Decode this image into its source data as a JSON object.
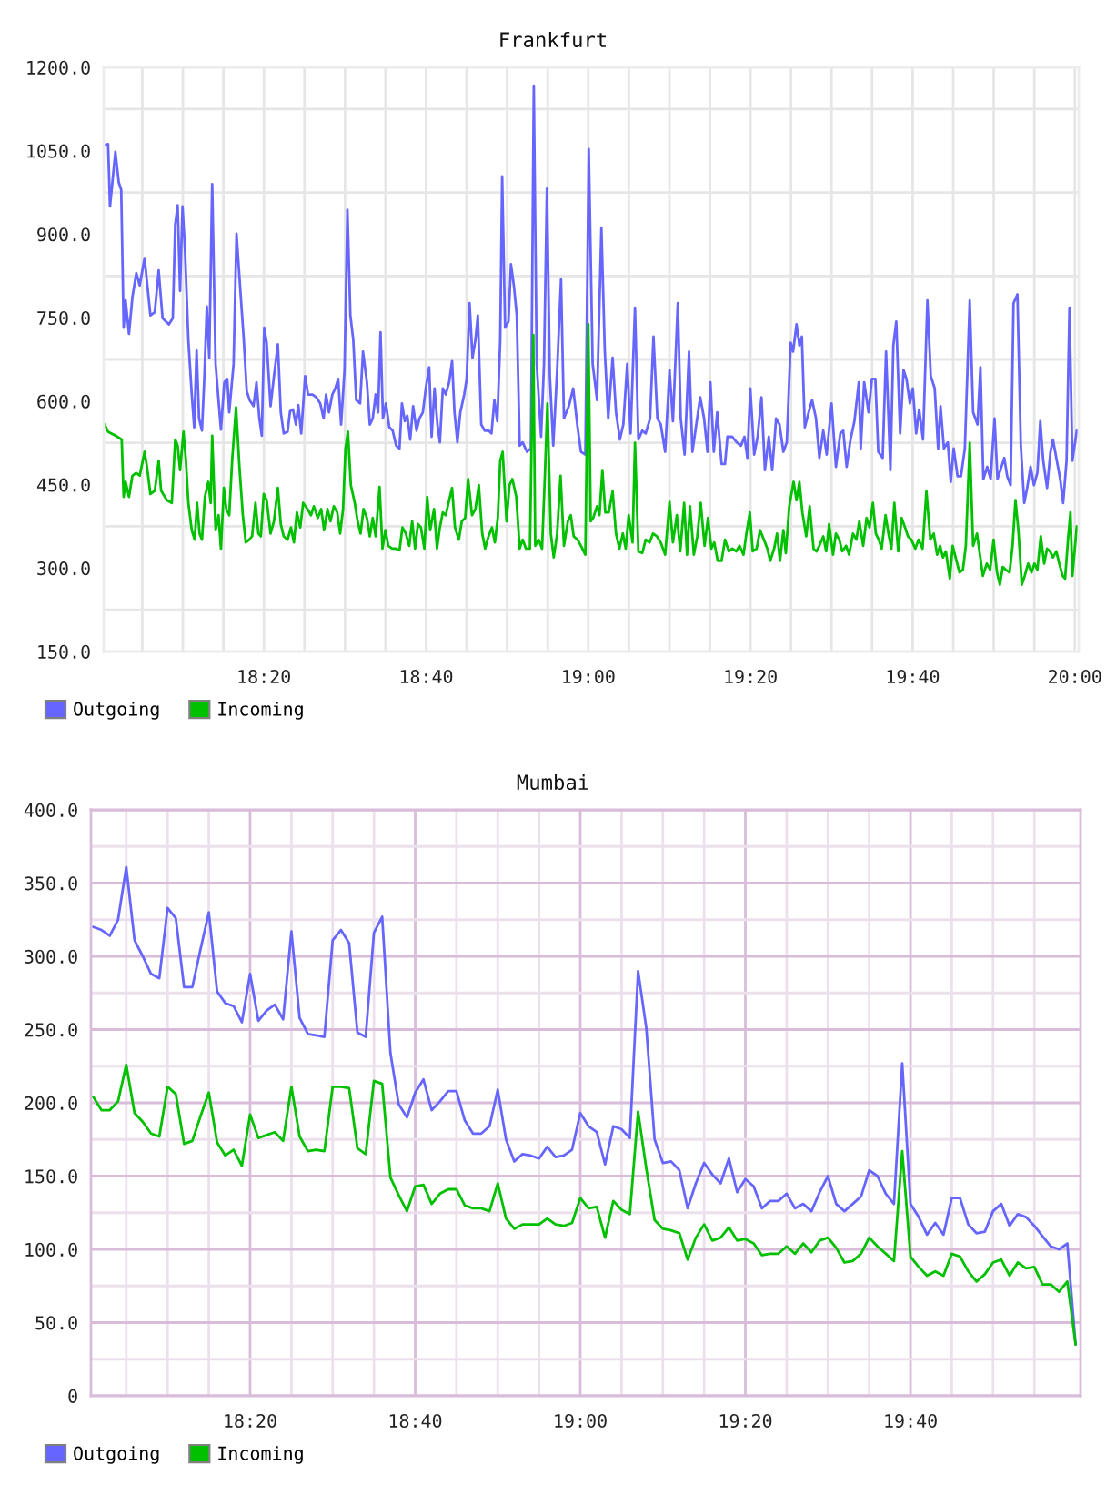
{
  "chart_data": [
    {
      "type": "line",
      "title": "Frankfurt",
      "xlim": [
        18.004,
        20.008
      ],
      "ylim": [
        150,
        1200
      ],
      "xticks": [
        {
          "value": 18.0833,
          "label": null
        },
        {
          "value": 18.1667,
          "label": null
        },
        {
          "value": 18.25,
          "label": null
        },
        {
          "value": 18.3333,
          "label": "18:20"
        },
        {
          "value": 18.4167,
          "label": null
        },
        {
          "value": 18.5,
          "label": null
        },
        {
          "value": 18.5833,
          "label": null
        },
        {
          "value": 18.6667,
          "label": "18:40"
        },
        {
          "value": 18.75,
          "label": null
        },
        {
          "value": 18.8333,
          "label": null
        },
        {
          "value": 18.9167,
          "label": null
        },
        {
          "value": 19,
          "label": "19:00"
        },
        {
          "value": 19.0833,
          "label": null
        },
        {
          "value": 19.1667,
          "label": null
        },
        {
          "value": 19.25,
          "label": null
        },
        {
          "value": 19.3333,
          "label": "19:20"
        },
        {
          "value": 19.4167,
          "label": null
        },
        {
          "value": 19.5,
          "label": null
        },
        {
          "value": 19.5833,
          "label": null
        },
        {
          "value": 19.6667,
          "label": "19:40"
        },
        {
          "value": 19.75,
          "label": null
        },
        {
          "value": 19.8333,
          "label": null
        },
        {
          "value": 19.9167,
          "label": null
        },
        {
          "value": 20,
          "label": "20:00"
        }
      ],
      "yticks": [
        {
          "value": 150,
          "label": "150.0"
        },
        {
          "value": 225,
          "label": null
        },
        {
          "value": 300,
          "label": "300.0"
        },
        {
          "value": 375,
          "label": null
        },
        {
          "value": 450,
          "label": "450.0"
        },
        {
          "value": 525,
          "label": null
        },
        {
          "value": 600,
          "label": "600.0"
        },
        {
          "value": 675,
          "label": null
        },
        {
          "value": 750,
          "label": "750.0"
        },
        {
          "value": 825,
          "label": null
        },
        {
          "value": 900,
          "label": "900.0"
        },
        {
          "value": 975,
          "label": null
        },
        {
          "value": 1050,
          "label": "1050.0"
        },
        {
          "value": 1125,
          "label": null
        },
        {
          "value": 1200,
          "label": "1200.0"
        }
      ],
      "grid": true,
      "legend": "bottom left",
      "series": [
        {
          "name": "Outgoing",
          "color": "#6666ff",
          "x": [
            18.006,
            18.013,
            18.017,
            18.028,
            18.035,
            18.04,
            18.045,
            18.049,
            18.056,
            18.063,
            18.071,
            18.078,
            18.088,
            18.1,
            18.109,
            18.117,
            18.125,
            18.138,
            18.146,
            18.151,
            18.156,
            18.161,
            18.166,
            18.171,
            18.178,
            18.185,
            18.19,
            18.195,
            18.2,
            18.206,
            18.211,
            18.216,
            18.221,
            18.227,
            18.234,
            18.24,
            18.245,
            18.252,
            18.258,
            18.262,
            18.271,
            18.277,
            18.285,
            18.292,
            18.298,
            18.304,
            18.312,
            18.318,
            18.324,
            18.329,
            18.334,
            18.339,
            18.347,
            18.354,
            18.362,
            18.368,
            18.374,
            18.382,
            18.387,
            18.393,
            18.399,
            18.404,
            18.41,
            18.418,
            18.424,
            18.433,
            18.441,
            18.449,
            18.456,
            18.461,
            18.467,
            18.474,
            18.48,
            18.486,
            18.492,
            18.499,
            18.505,
            18.511,
            18.517,
            18.523,
            18.531,
            18.537,
            18.545,
            18.551,
            18.557,
            18.563,
            18.568,
            18.573,
            18.578,
            18.584,
            18.591,
            18.598,
            18.605,
            18.612,
            18.617,
            18.623,
            18.628,
            18.634,
            18.64,
            18.647,
            18.653,
            18.66,
            18.666,
            18.673,
            18.678,
            18.684,
            18.69,
            18.695,
            18.701,
            18.707,
            18.714,
            18.72,
            18.725,
            18.731,
            18.737,
            18.745,
            18.75,
            18.756,
            18.762,
            18.768,
            18.773,
            18.78,
            18.787,
            18.795,
            18.801,
            18.807,
            18.813,
            18.819,
            18.823,
            18.829,
            18.836,
            18.841,
            18.847,
            18.853,
            18.859,
            18.865,
            18.874,
            18.882,
            18.888,
            18.894,
            18.903,
            18.909,
            18.915,
            18.921,
            18.928,
            18.936,
            18.944,
            18.95,
            18.96,
            18.969,
            18.978,
            18.985,
            18.994,
            19.001,
            19.009,
            19.018,
            19.027,
            19.034,
            19.041,
            19.05,
            19.057,
            19.065,
            19.072,
            19.08,
            19.087,
            19.096,
            19.103,
            19.111,
            19.118,
            19.127,
            19.134,
            19.142,
            19.149,
            19.158,
            19.167,
            19.174,
            19.184,
            19.19,
            19.198,
            19.207,
            19.214,
            19.222,
            19.23,
            19.238,
            19.245,
            19.251,
            19.258,
            19.265,
            19.274,
            19.281,
            19.286,
            19.296,
            19.305,
            19.314,
            19.321,
            19.327,
            19.333,
            19.341,
            19.348,
            19.356,
            19.363,
            19.371,
            19.378,
            19.386,
            19.393,
            19.401,
            19.408,
            19.416,
            19.421,
            19.428,
            19.434,
            19.439,
            19.445,
            19.453,
            19.46,
            19.468,
            19.475,
            19.483,
            19.49,
            19.5,
            19.509,
            19.518,
            19.524,
            19.531,
            19.539,
            19.547,
            19.556,
            19.56,
            19.567,
            19.576,
            19.583,
            19.59,
            19.596,
            19.605,
            19.612,
            19.621,
            19.627,
            19.633,
            19.641,
            19.648,
            19.654,
            19.661,
            19.667,
            19.674,
            19.68,
            19.688,
            19.697,
            19.704,
            19.712,
            19.719,
            19.724,
            19.731,
            19.739,
            19.745,
            19.751,
            19.759,
            19.766,
            19.774,
            19.784,
            19.791,
            19.8,
            19.806,
            19.812,
            19.82,
            19.827,
            19.835,
            19.841,
            19.847,
            19.855,
            19.861,
            19.868,
            19.874,
            19.882,
            19.889,
            19.896,
            19.902,
            19.909,
            19.916,
            19.923,
            19.929,
            19.935,
            19.943,
            19.95,
            19.955,
            19.963,
            19.97,
            19.976,
            19.983,
            19.989,
            19.995,
            20.004
          ],
          "values": [
            1060,
            1062,
            950,
            1048,
            993,
            980,
            732,
            781,
            721,
            787,
            830,
            808,
            857,
            754,
            760,
            835,
            749,
            738,
            749,
            917,
            952,
            798,
            950,
            874,
            710,
            612,
            553,
            691,
            569,
            547,
            645,
            770,
            678,
            990,
            667,
            602,
            549,
            634,
            640,
            580,
            667,
            901,
            798,
            710,
            618,
            602,
            591,
            634,
            569,
            538,
            732,
            705,
            591,
            645,
            702,
            580,
            542,
            545,
            582,
            585,
            558,
            593,
            542,
            645,
            612,
            612,
            607,
            596,
            569,
            612,
            580,
            612,
            623,
            640,
            558,
            656,
            944,
            754,
            710,
            602,
            596,
            689,
            634,
            558,
            569,
            612,
            580,
            724,
            569,
            596,
            553,
            547,
            520,
            515,
            596,
            564,
            574,
            531,
            591,
            547,
            569,
            580,
            623,
            661,
            536,
            623,
            558,
            526,
            623,
            612,
            634,
            672,
            580,
            526,
            580,
            612,
            640,
            776,
            678,
            710,
            754,
            558,
            547,
            547,
            542,
            602,
            564,
            710,
            1004,
            732,
            743,
            846,
            808,
            754,
            520,
            526,
            509,
            515,
            1167,
            667,
            536,
            667,
            982,
            645,
            520,
            656,
            819,
            569,
            591,
            623,
            553,
            509,
            504,
            1053,
            667,
            602,
            912,
            689,
            569,
            678,
            580,
            531,
            558,
            667,
            542,
            768,
            531,
            547,
            542,
            569,
            716,
            569,
            558,
            509,
            656,
            564,
            776,
            569,
            504,
            689,
            509,
            558,
            607,
            569,
            509,
            634,
            509,
            580,
            487,
            487,
            536,
            536,
            526,
            520,
            536,
            498,
            623,
            504,
            536,
            607,
            476,
            536,
            476,
            569,
            558,
            509,
            526,
            705,
            689,
            738,
            700,
            716,
            553,
            580,
            602,
            569,
            498,
            547,
            504,
            596,
            482,
            542,
            547,
            482,
            531,
            564,
            634,
            515,
            634,
            580,
            640,
            640,
            509,
            498,
            689,
            476,
            700,
            743,
            542,
            656,
            640,
            596,
            623,
            542,
            585,
            531,
            781,
            645,
            623,
            515,
            591,
            515,
            526,
            455,
            515,
            465,
            465,
            515,
            781,
            580,
            558,
            661,
            460,
            482,
            460,
            569,
            460,
            476,
            498,
            465,
            449,
            776,
            792,
            520,
            417,
            444,
            482,
            449,
            471,
            564,
            493,
            444,
            509,
            531,
            493,
            460,
            417,
            493,
            768,
            493,
            547
          ]
        },
        {
          "name": "Incoming",
          "color": "#00c000",
          "x": [
            18.006,
            18.013,
            18.028,
            18.041,
            18.045,
            18.049,
            18.056,
            18.063,
            18.071,
            18.078,
            18.088,
            18.093,
            18.1,
            18.109,
            18.117,
            18.122,
            18.134,
            18.144,
            18.151,
            18.156,
            18.161,
            18.168,
            18.173,
            18.178,
            18.185,
            18.191,
            18.196,
            18.201,
            18.206,
            18.212,
            18.219,
            18.224,
            18.227,
            18.234,
            18.24,
            18.245,
            18.251,
            18.256,
            18.262,
            18.268,
            18.276,
            18.283,
            18.29,
            18.296,
            18.303,
            18.309,
            18.316,
            18.322,
            18.327,
            18.333,
            18.339,
            18.347,
            18.354,
            18.362,
            18.368,
            18.374,
            18.382,
            18.389,
            18.395,
            18.401,
            18.408,
            18.414,
            18.423,
            18.43,
            18.436,
            18.444,
            18.451,
            18.457,
            18.464,
            18.47,
            18.477,
            18.484,
            18.49,
            18.496,
            18.501,
            18.506,
            18.512,
            18.52,
            18.526,
            18.532,
            18.538,
            18.545,
            18.551,
            18.557,
            18.563,
            18.571,
            18.577,
            18.583,
            18.589,
            18.597,
            18.604,
            18.612,
            18.618,
            18.625,
            18.632,
            18.638,
            18.644,
            18.65,
            18.656,
            18.663,
            18.669,
            18.675,
            18.683,
            18.689,
            18.695,
            18.701,
            18.707,
            18.714,
            18.72,
            18.726,
            18.734,
            18.74,
            18.747,
            18.753,
            18.761,
            18.768,
            18.775,
            18.782,
            18.788,
            18.795,
            18.802,
            18.808,
            18.814,
            18.819,
            18.824,
            18.832,
            18.838,
            18.844,
            18.852,
            18.859,
            18.865,
            18.872,
            18.88,
            18.887,
            18.891,
            18.898,
            18.905,
            18.911,
            18.916,
            18.923,
            18.929,
            18.936,
            18.943,
            18.95,
            18.958,
            18.964,
            18.97,
            18.978,
            18.985,
            18.994,
            19.0,
            19.005,
            19.01,
            19.018,
            19.023,
            19.029,
            19.035,
            19.042,
            19.05,
            19.057,
            19.064,
            19.071,
            19.077,
            19.083,
            19.091,
            19.096,
            19.103,
            19.111,
            19.118,
            19.126,
            19.133,
            19.141,
            19.149,
            19.158,
            19.167,
            19.174,
            19.182,
            19.189,
            19.197,
            19.203,
            19.209,
            19.217,
            19.224,
            19.231,
            19.239,
            19.246,
            19.253,
            19.259,
            19.266,
            19.274,
            19.281,
            19.289,
            19.296,
            19.304,
            19.311,
            19.319,
            19.325,
            19.332,
            19.338,
            19.346,
            19.353,
            19.361,
            19.368,
            19.374,
            19.382,
            19.388,
            19.394,
            19.401,
            19.406,
            19.413,
            19.422,
            19.428,
            19.434,
            19.44,
            19.448,
            19.455,
            19.463,
            19.469,
            19.475,
            19.483,
            19.489,
            19.495,
            19.503,
            19.509,
            19.516,
            19.522,
            19.53,
            19.536,
            19.544,
            19.551,
            19.557,
            19.565,
            19.572,
            19.578,
            19.585,
            19.591,
            19.597,
            19.603,
            19.611,
            19.617,
            19.623,
            19.629,
            19.637,
            19.644,
            19.651,
            19.657,
            19.664,
            19.672,
            19.679,
            19.687,
            19.695,
            19.703,
            19.71,
            19.717,
            19.723,
            19.729,
            19.735,
            19.743,
            19.749,
            19.755,
            19.763,
            19.77,
            19.776,
            19.784,
            19.791,
            19.799,
            19.805,
            19.811,
            19.819,
            19.826,
            19.833,
            19.84,
            19.846,
            19.852,
            19.858,
            19.866,
            19.872,
            19.878,
            19.884,
            19.891,
            19.897,
            19.904,
            19.911,
            19.917,
            19.923,
            19.93,
            19.937,
            19.943,
            19.949,
            19.955,
            19.962,
            19.968,
            19.975,
            19.98,
            19.986,
            19.991,
            19.995,
            20.004
          ],
          "values": [
            558,
            545,
            538,
            531,
            428,
            455,
            428,
            466,
            471,
            466,
            509,
            482,
            433,
            439,
            493,
            439,
            422,
            417,
            531,
            520,
            476,
            545,
            493,
            417,
            368,
            351,
            417,
            362,
            351,
            428,
            455,
            417,
            538,
            368,
            395,
            335,
            444,
            406,
            395,
            493,
            589,
            482,
            395,
            346,
            351,
            357,
            417,
            362,
            357,
            433,
            422,
            362,
            384,
            444,
            379,
            357,
            351,
            373,
            346,
            400,
            373,
            417,
            406,
            395,
            411,
            390,
            406,
            368,
            406,
            384,
            411,
            400,
            362,
            406,
            515,
            545,
            449,
            417,
            384,
            362,
            406,
            390,
            357,
            390,
            357,
            446,
            335,
            368,
            340,
            335,
            335,
            332,
            373,
            362,
            340,
            384,
            335,
            379,
            373,
            335,
            428,
            368,
            406,
            335,
            373,
            400,
            395,
            422,
            444,
            373,
            351,
            384,
            390,
            460,
            395,
            406,
            449,
            362,
            335,
            357,
            373,
            346,
            390,
            493,
            509,
            384,
            449,
            460,
            428,
            335,
            351,
            335,
            335,
            719,
            340,
            351,
            335,
            471,
            596,
            362,
            319,
            362,
            466,
            340,
            384,
            395,
            357,
            351,
            340,
            324,
            738,
            384,
            390,
            411,
            395,
            476,
            400,
            400,
            438,
            362,
            335,
            362,
            335,
            395,
            346,
            525,
            330,
            327,
            351,
            346,
            362,
            357,
            346,
            324,
            419,
            346,
            395,
            330,
            417,
            324,
            411,
            324,
            357,
            417,
            340,
            390,
            335,
            346,
            313,
            313,
            351,
            330,
            335,
            330,
            340,
            324,
            362,
            400,
            330,
            335,
            368,
            351,
            335,
            313,
            335,
            362,
            313,
            368,
            327,
            411,
            455,
            422,
            455,
            400,
            357,
            411,
            335,
            330,
            340,
            357,
            330,
            379,
            324,
            362,
            351,
            330,
            340,
            324,
            362,
            351,
            384,
            340,
            390,
            373,
            417,
            362,
            351,
            335,
            395,
            362,
            335,
            417,
            330,
            390,
            373,
            357,
            351,
            335,
            351,
            335,
            438,
            351,
            362,
            324,
            340,
            319,
            330,
            281,
            340,
            319,
            292,
            297,
            340,
            525,
            340,
            362,
            324,
            286,
            308,
            297,
            351,
            292,
            270,
            302,
            297,
            292,
            340,
            422,
            368,
            270,
            286,
            308,
            292,
            308,
            297,
            357,
            308,
            335,
            330,
            319,
            330,
            308,
            286,
            281,
            351,
            400,
            286,
            375
          ]
        }
      ]
    },
    {
      "type": "line",
      "title": "Mumbai",
      "xlim": [
        18.012,
        20.01
      ],
      "ylim": [
        0,
        400
      ],
      "xticks": [
        {
          "value": 18.0833,
          "label": null
        },
        {
          "value": 18.1667,
          "label": null
        },
        {
          "value": 18.25,
          "label": null
        },
        {
          "value": 18.3333,
          "label": "18:20"
        },
        {
          "value": 18.4167,
          "label": null
        },
        {
          "value": 18.5,
          "label": null
        },
        {
          "value": 18.5833,
          "label": null
        },
        {
          "value": 18.6667,
          "label": "18:40"
        },
        {
          "value": 18.75,
          "label": null
        },
        {
          "value": 18.8333,
          "label": null
        },
        {
          "value": 18.9167,
          "label": null
        },
        {
          "value": 19,
          "label": "19:00"
        },
        {
          "value": 19.0833,
          "label": null
        },
        {
          "value": 19.1667,
          "label": null
        },
        {
          "value": 19.25,
          "label": null
        },
        {
          "value": 19.3333,
          "label": "19:20"
        },
        {
          "value": 19.4167,
          "label": null
        },
        {
          "value": 19.5,
          "label": null
        },
        {
          "value": 19.5833,
          "label": null
        },
        {
          "value": 19.6667,
          "label": "19:40"
        },
        {
          "value": 19.75,
          "label": null
        },
        {
          "value": 19.8333,
          "label": null
        },
        {
          "value": 19.9167,
          "label": null
        }
      ],
      "yticks": [
        0,
        {
          "value": 25,
          "label": null
        },
        {
          "value": 50,
          "label": "50.0"
        },
        {
          "value": 75,
          "label": null
        },
        {
          "value": 100,
          "label": "100.0"
        },
        {
          "value": 125,
          "label": null
        },
        {
          "value": 150,
          "label": "150.0"
        },
        {
          "value": 175,
          "label": null
        },
        {
          "value": 200,
          "label": "200.0"
        },
        {
          "value": 225,
          "label": null
        },
        {
          "value": 250,
          "label": "250.0"
        },
        {
          "value": 275,
          "label": null
        },
        {
          "value": 300,
          "label": "300.0"
        },
        {
          "value": 325,
          "label": null
        },
        {
          "value": 350,
          "label": "350.0"
        },
        {
          "value": 375,
          "label": null
        },
        {
          "value": 400,
          "label": "400.0"
        }
      ],
      "grid": true,
      "legend": "bottom left",
      "x": [
        18.0167,
        18.0333,
        18.05,
        18.0667,
        18.0833,
        18.1,
        18.1167,
        18.1333,
        18.15,
        18.1667,
        18.1833,
        18.2,
        18.2167,
        18.2333,
        18.25,
        18.2667,
        18.2833,
        18.3,
        18.3167,
        18.3333,
        18.35,
        18.3667,
        18.3833,
        18.4,
        18.4167,
        18.4333,
        18.45,
        18.4667,
        18.4833,
        18.5,
        18.5167,
        18.5333,
        18.55,
        18.5667,
        18.5833,
        18.6,
        18.6167,
        18.6333,
        18.65,
        18.6667,
        18.6833,
        18.7,
        18.7167,
        18.7333,
        18.75,
        18.7667,
        18.7833,
        18.8,
        18.8167,
        18.8333,
        18.85,
        18.8667,
        18.8833,
        18.9,
        18.9167,
        18.9333,
        18.95,
        18.9667,
        18.9833,
        19,
        19.0167,
        19.0333,
        19.05,
        19.0667,
        19.0833,
        19.1,
        19.1167,
        19.1333,
        19.15,
        19.1667,
        19.1833,
        19.2,
        19.2167,
        19.2333,
        19.25,
        19.2667,
        19.2833,
        19.3,
        19.3167,
        19.3333,
        19.35,
        19.3667,
        19.3833,
        19.4,
        19.4167,
        19.4333,
        19.45,
        19.4667,
        19.4833,
        19.5,
        19.5167,
        19.5333,
        19.55,
        19.5667,
        19.5833,
        19.6,
        19.6167,
        19.6333,
        19.65,
        19.6667,
        19.6833,
        19.7,
        19.7167,
        19.7333,
        19.75,
        19.7667,
        19.7833,
        19.8,
        19.8167,
        19.8333,
        19.85,
        19.8667,
        19.8833,
        19.9,
        19.9167,
        19.9333,
        19.95,
        19.9667,
        19.9833,
        20
      ],
      "series": [
        {
          "name": "Outgoing",
          "color": "#6666ff",
          "values": [
            320,
            318,
            314,
            325,
            361,
            311,
            300,
            288,
            285,
            333,
            326,
            279,
            279,
            305,
            330,
            276,
            268,
            266,
            255,
            288,
            256,
            263,
            267,
            257,
            317,
            258,
            247,
            246,
            245,
            311,
            318,
            309,
            248,
            245,
            316,
            327,
            234,
            199,
            190,
            207,
            216,
            195,
            201,
            208,
            208,
            188,
            179,
            179,
            184,
            209,
            175,
            160,
            165,
            164,
            162,
            170,
            163,
            164,
            168,
            193,
            184,
            180,
            158,
            184,
            182,
            176,
            290,
            251,
            175,
            159,
            160,
            154,
            128,
            145,
            159,
            151,
            145,
            162,
            139,
            148,
            143,
            128,
            133,
            133,
            138,
            128,
            131,
            126,
            139,
            150,
            131,
            126,
            131,
            136,
            154,
            150,
            138,
            131,
            227,
            131,
            122,
            110,
            118,
            110,
            135,
            135,
            117,
            111,
            112,
            126,
            131,
            116,
            124,
            122,
            116,
            109,
            102,
            100,
            104,
            35
          ]
        },
        {
          "name": "Incoming",
          "color": "#00c000",
          "values": [
            204,
            195,
            195,
            201,
            226,
            193,
            187,
            179,
            177,
            211,
            206,
            172,
            174,
            191,
            207,
            173,
            164,
            168,
            157,
            192,
            176,
            178,
            180,
            174,
            211,
            177,
            167,
            168,
            167,
            211,
            211,
            210,
            169,
            165,
            215,
            213,
            149,
            137,
            126,
            143,
            144,
            131,
            138,
            141,
            141,
            130,
            128,
            128,
            126,
            145,
            121,
            114,
            117,
            117,
            117,
            121,
            117,
            116,
            118,
            135,
            128,
            129,
            108,
            133,
            127,
            124,
            194,
            155,
            120,
            114,
            113,
            111,
            93,
            108,
            117,
            106,
            108,
            115,
            106,
            107,
            104,
            96,
            97,
            97,
            102,
            97,
            104,
            98,
            106,
            108,
            101,
            91,
            92,
            97,
            108,
            102,
            97,
            92,
            167,
            95,
            88,
            82,
            85,
            82,
            97,
            95,
            85,
            78,
            83,
            91,
            93,
            82,
            91,
            87,
            88,
            76,
            76,
            71,
            78,
            35
          ]
        }
      ]
    }
  ]
}
